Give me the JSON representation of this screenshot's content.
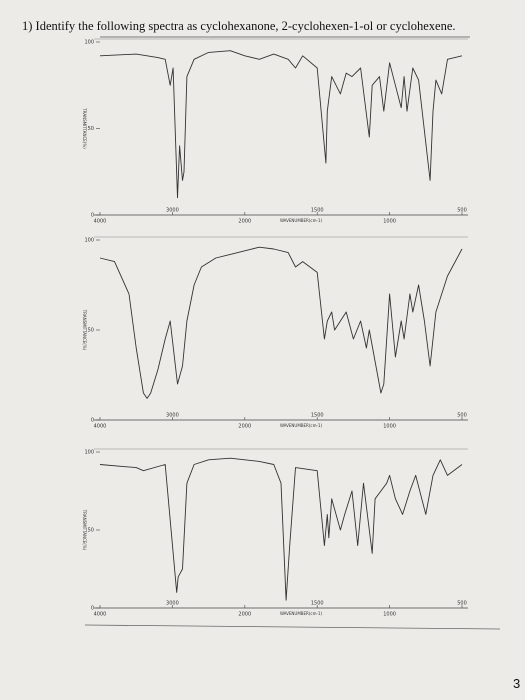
{
  "question": "1) Identify the following spectra as cyclohexanone, 2-cyclohexen-1-ol or cyclohexene.",
  "page_number": "3",
  "chart_data": [
    {
      "type": "line",
      "xlabel": "WAVENUMBER(cm-1)",
      "ylabel": "TRANSMITTANCE(%)",
      "xlim": [
        4000,
        500
      ],
      "ylim": [
        0,
        100
      ],
      "xticks": [
        4000,
        3000,
        2000,
        1500,
        1000,
        500
      ],
      "yticks": [
        0,
        50,
        100
      ],
      "color": "#333333",
      "x": [
        4000,
        3500,
        3200,
        3100,
        3030,
        2990,
        2930,
        2900,
        2860,
        2840,
        2800,
        2700,
        2500,
        2200,
        2000,
        1900,
        1800,
        1700,
        1650,
        1600,
        1500,
        1440,
        1430,
        1400,
        1340,
        1300,
        1260,
        1200,
        1140,
        1120,
        1070,
        1040,
        1000,
        960,
        920,
        900,
        880,
        840,
        800,
        720,
        700,
        680,
        640,
        600,
        500
      ],
      "values": [
        92,
        93,
        91,
        90,
        75,
        85,
        10,
        40,
        20,
        25,
        80,
        90,
        94,
        95,
        92,
        90,
        93,
        90,
        85,
        92,
        85,
        30,
        60,
        80,
        70,
        82,
        80,
        85,
        45,
        75,
        80,
        60,
        88,
        75,
        62,
        80,
        60,
        85,
        78,
        20,
        60,
        78,
        70,
        90,
        92
      ]
    },
    {
      "type": "line",
      "xlabel": "WAVENUMBER(cm-1)",
      "ylabel": "TRANSMITTANCE(%)",
      "xlim": [
        4000,
        500
      ],
      "ylim": [
        0,
        100
      ],
      "xticks": [
        4000,
        3000,
        2000,
        1500,
        1000,
        500
      ],
      "yticks": [
        0,
        50,
        100
      ],
      "color": "#333333",
      "x": [
        4000,
        3800,
        3600,
        3500,
        3400,
        3350,
        3300,
        3200,
        3100,
        3030,
        2930,
        2860,
        2800,
        2700,
        2600,
        2400,
        2200,
        2000,
        1900,
        1800,
        1700,
        1650,
        1600,
        1500,
        1450,
        1430,
        1400,
        1380,
        1340,
        1300,
        1250,
        1200,
        1160,
        1140,
        1060,
        1040,
        1000,
        960,
        920,
        900,
        860,
        840,
        800,
        760,
        720,
        680,
        640,
        600,
        500
      ],
      "values": [
        90,
        88,
        70,
        40,
        15,
        12,
        15,
        28,
        45,
        55,
        20,
        30,
        55,
        75,
        85,
        90,
        92,
        94,
        96,
        95,
        93,
        85,
        88,
        82,
        45,
        55,
        60,
        50,
        55,
        60,
        45,
        55,
        40,
        50,
        15,
        20,
        70,
        35,
        55,
        45,
        70,
        60,
        75,
        55,
        30,
        60,
        70,
        80,
        95
      ]
    },
    {
      "type": "line",
      "xlabel": "WAVENUMBER(cm-1)",
      "ylabel": "TRANSMITTANCE(%)",
      "xlim": [
        4000,
        500
      ],
      "ylim": [
        0,
        100
      ],
      "xticks": [
        4000,
        3000,
        2000,
        1500,
        1000,
        500
      ],
      "yticks": [
        0,
        50,
        100
      ],
      "color": "#333333",
      "x": [
        4000,
        3500,
        3400,
        3100,
        2940,
        2920,
        2860,
        2800,
        2700,
        2500,
        2200,
        2000,
        1900,
        1800,
        1750,
        1715,
        1690,
        1650,
        1500,
        1450,
        1430,
        1420,
        1400,
        1340,
        1310,
        1260,
        1220,
        1180,
        1120,
        1100,
        1060,
        1020,
        1000,
        960,
        910,
        860,
        820,
        750,
        700,
        650,
        600,
        500
      ],
      "values": [
        92,
        90,
        88,
        92,
        10,
        20,
        25,
        80,
        92,
        95,
        96,
        95,
        94,
        92,
        80,
        5,
        40,
        90,
        88,
        40,
        60,
        45,
        70,
        50,
        60,
        75,
        40,
        80,
        35,
        70,
        75,
        80,
        85,
        70,
        60,
        75,
        85,
        60,
        85,
        95,
        85,
        92
      ]
    }
  ]
}
